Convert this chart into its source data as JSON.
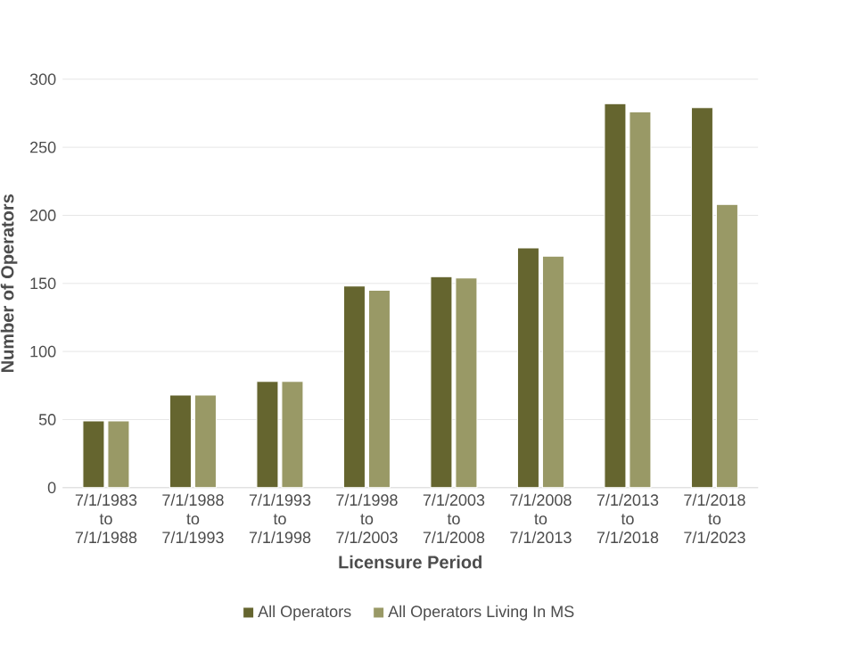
{
  "chart_data": {
    "type": "bar",
    "categories": [
      "7/1/1983 to 7/1/1988",
      "7/1/1988 to 7/1/1993",
      "7/1/1993 to 7/1/1998",
      "7/1/1998 to 7/1/2003",
      "7/1/2003 to 7/1/2008",
      "7/1/2008 to 7/1/2013",
      "7/1/2013 to 7/1/2018",
      "7/1/2018 to 7/1/2023"
    ],
    "series": [
      {
        "name": "All Operators",
        "color": "#65652f",
        "values": [
          49,
          68,
          78,
          148,
          155,
          176,
          282,
          279
        ]
      },
      {
        "name": "All Operators Living In MS",
        "color": "#999966",
        "values": [
          49,
          68,
          78,
          145,
          154,
          170,
          276,
          208
        ]
      }
    ],
    "xlabel": "Licensure Period",
    "ylabel": "Number of Operators",
    "ylim": [
      0,
      300
    ],
    "yticks": [
      0,
      50,
      100,
      150,
      200,
      250,
      300
    ],
    "grid": "y",
    "legend": "bottom"
  }
}
